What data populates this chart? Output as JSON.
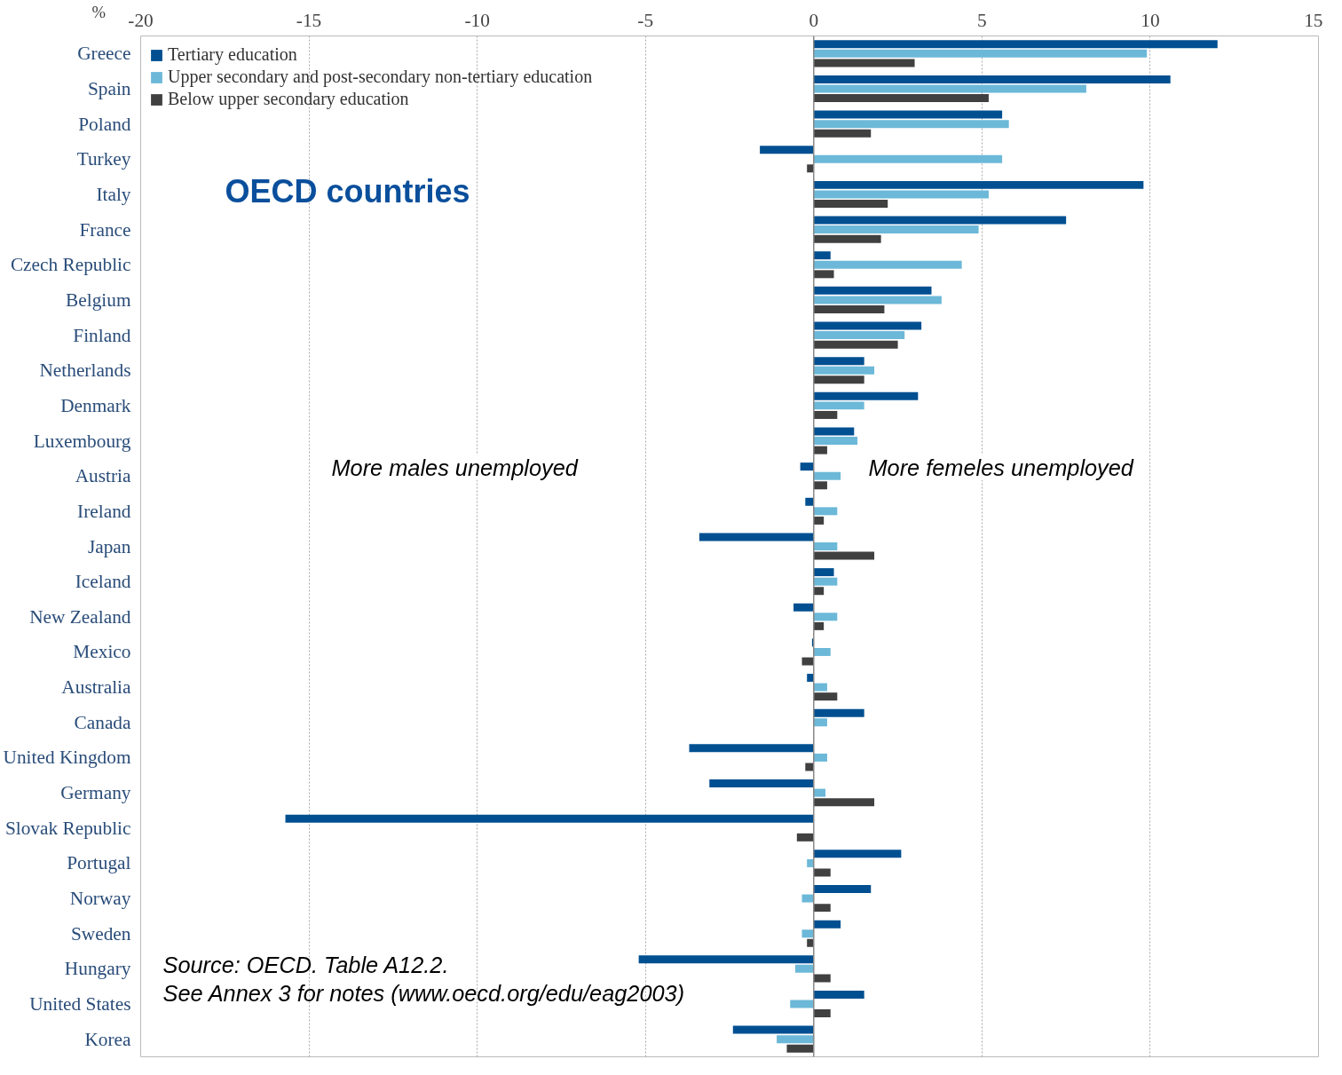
{
  "chart_data": {
    "type": "bar",
    "orientation": "horizontal",
    "title": "OECD countries",
    "xlabel": "%",
    "categories": [
      "Greece",
      "Spain",
      "Poland",
      "Turkey",
      "Italy",
      "France",
      "Czech Republic",
      "Belgium",
      "Finland",
      "Netherlands",
      "Denmark",
      "Luxembourg",
      "Austria",
      "Ireland",
      "Japan",
      "Iceland",
      "New Zealand",
      "Mexico",
      "Australia",
      "Canada",
      "United Kingdom",
      "Germany",
      "Slovak Republic",
      "Portugal",
      "Norway",
      "Sweden",
      "Hungary",
      "United States",
      "Korea"
    ],
    "series": [
      {
        "name": "Tertiary education",
        "color": "#004f91",
        "values": [
          12.0,
          10.6,
          5.6,
          -1.6,
          9.8,
          7.5,
          0.5,
          3.5,
          3.2,
          1.5,
          3.1,
          1.2,
          -0.4,
          -0.25,
          -3.4,
          0.6,
          -0.6,
          -0.05,
          -0.2,
          1.5,
          -3.7,
          -3.1,
          -15.7,
          2.6,
          1.7,
          0.8,
          -5.2,
          1.5,
          -2.4
        ]
      },
      {
        "name": "Upper secondary and post-secondary non-tertiary education",
        "color": "#6cb8d8",
        "values": [
          9.9,
          8.1,
          5.8,
          5.6,
          5.2,
          4.9,
          4.4,
          3.8,
          2.7,
          1.8,
          1.5,
          1.3,
          0.8,
          0.7,
          0.7,
          0.7,
          0.7,
          0.5,
          0.4,
          0.4,
          0.4,
          0.35,
          0.0,
          -0.2,
          -0.35,
          -0.35,
          -0.55,
          -0.7,
          -1.1
        ]
      },
      {
        "name": "Below upper secondary education",
        "color": "#404040",
        "values": [
          3.0,
          5.2,
          1.7,
          -0.2,
          2.2,
          2.0,
          0.6,
          2.1,
          2.5,
          1.5,
          0.7,
          0.4,
          0.4,
          0.3,
          1.8,
          0.3,
          0.3,
          -0.35,
          0.7,
          0.0,
          -0.25,
          1.8,
          -0.5,
          0.5,
          0.5,
          -0.2,
          0.5,
          0.5,
          -0.8
        ]
      }
    ],
    "xlim": [
      -20,
      15
    ],
    "xticks": [
      -20,
      -15,
      -10,
      -5,
      0,
      5,
      10,
      15
    ],
    "grid": "x",
    "legend": "top left",
    "ref_lines": [
      {
        "axis": "x",
        "value": 0,
        "label": null,
        "color": "#888888"
      }
    ],
    "annotations": [
      "More males unemployed",
      "More femeles unemployed",
      "Source: OECD. Table A12.2.",
      "See Annex 3 for notes (www.oecd.org/edu/eag2003)"
    ]
  }
}
